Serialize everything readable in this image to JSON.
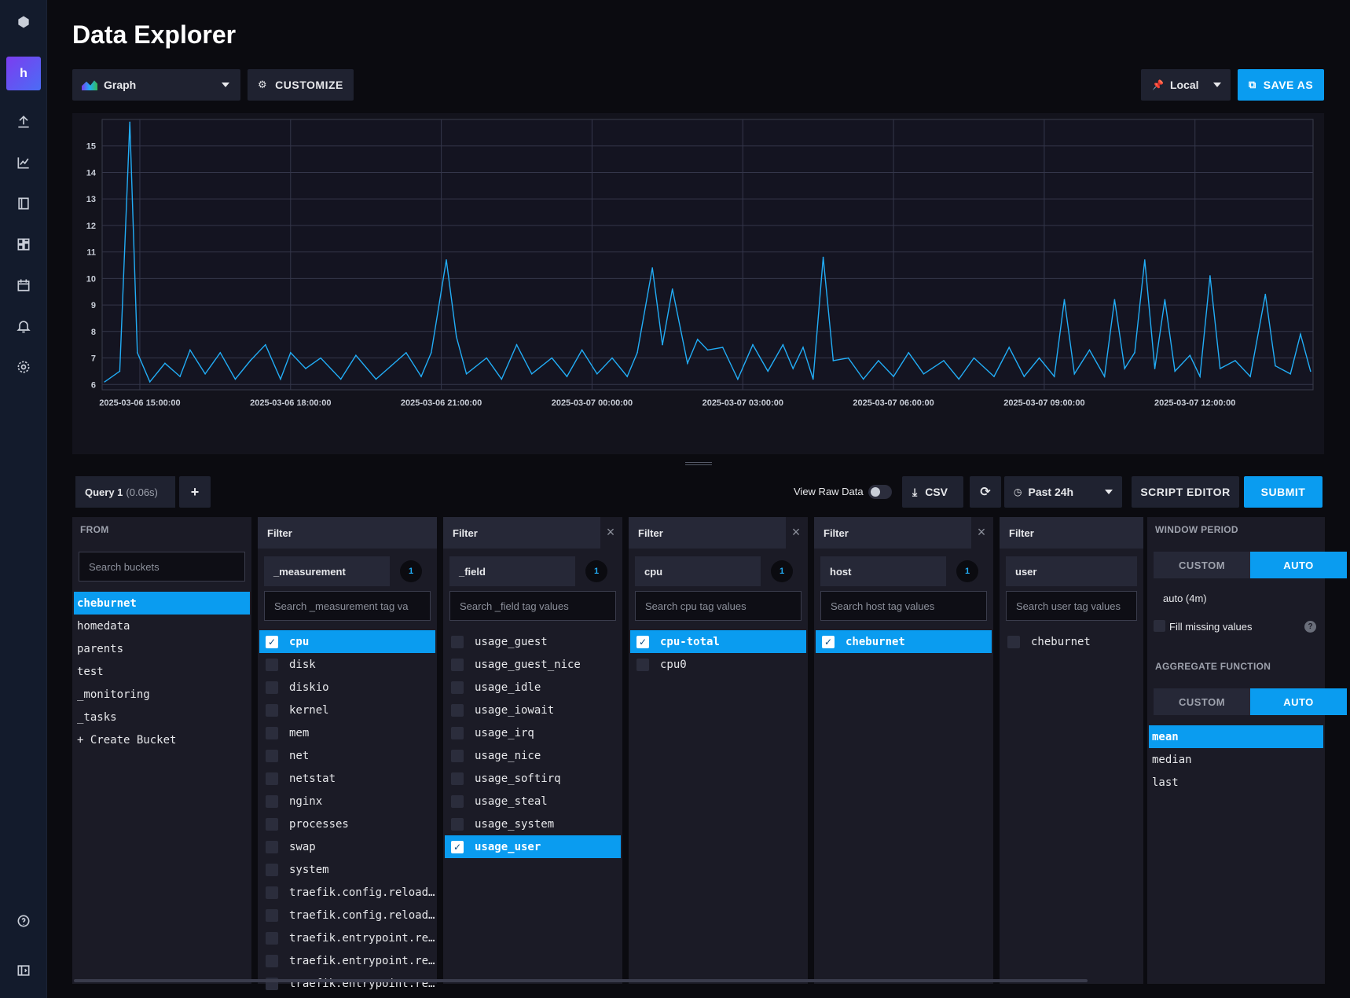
{
  "page": {
    "title": "Data Explorer"
  },
  "toolbar": {
    "viz_type": "Graph",
    "customize": "CUSTOMIZE",
    "timezone": "Local",
    "save_as": "SAVE AS"
  },
  "sidebar": {
    "org_initial": "h",
    "icons": [
      "logo-icon",
      "upload-icon",
      "explore-icon",
      "notebook-icon",
      "dashboard-icon",
      "tasks-icon",
      "alerts-icon",
      "settings-icon",
      "help-icon",
      "collapse-icon"
    ]
  },
  "query": {
    "tab_label": "Query 1",
    "timing": "(0.06s)",
    "add": "+",
    "view_raw": "View Raw Data",
    "csv": "CSV",
    "time_range": "Past 24h",
    "script_editor": "SCRIPT EDITOR",
    "submit": "SUBMIT"
  },
  "from": {
    "label": "FROM",
    "search_placeholder": "Search buckets",
    "buckets": [
      "cheburnet",
      "homedata",
      "parents",
      "test",
      "_monitoring",
      "_tasks",
      "+ Create Bucket"
    ],
    "selected": "cheburnet"
  },
  "filters": [
    {
      "header": "Filter",
      "key": "_measurement",
      "count": "1",
      "placeholder": "Search _measurement tag va",
      "items": [
        "cpu",
        "disk",
        "diskio",
        "kernel",
        "mem",
        "net",
        "netstat",
        "nginx",
        "processes",
        "swap",
        "system",
        "traefik.config.reload…",
        "traefik.config.reload…",
        "traefik.entrypoint.re…",
        "traefik.entrypoint.re…",
        "traefik.entrypoint.re…"
      ],
      "selected": [
        "cpu"
      ]
    },
    {
      "header": "Filter",
      "key": "_field",
      "count": "1",
      "placeholder": "Search _field tag values",
      "items": [
        "usage_guest",
        "usage_guest_nice",
        "usage_idle",
        "usage_iowait",
        "usage_irq",
        "usage_nice",
        "usage_softirq",
        "usage_steal",
        "usage_system",
        "usage_user"
      ],
      "selected": [
        "usage_user"
      ]
    },
    {
      "header": "Filter",
      "key": "cpu",
      "count": "1",
      "placeholder": "Search cpu tag values",
      "items": [
        "cpu-total",
        "cpu0"
      ],
      "selected": [
        "cpu-total"
      ]
    },
    {
      "header": "Filter",
      "key": "host",
      "count": "1",
      "placeholder": "Search host tag values",
      "items": [
        "cheburnet"
      ],
      "selected": [
        "cheburnet"
      ]
    },
    {
      "header": "Filter",
      "key": "user",
      "count": "",
      "placeholder": "Search user tag values",
      "items": [
        "cheburnet"
      ],
      "selected": []
    }
  ],
  "window": {
    "label": "WINDOW PERIOD",
    "custom": "CUSTOM",
    "auto": "AUTO",
    "auto_value": "auto (4m)",
    "fill_missing": "Fill missing values"
  },
  "aggregate": {
    "label": "AGGREGATE FUNCTION",
    "custom": "CUSTOM",
    "auto": "AUTO",
    "functions": [
      "mean",
      "median",
      "last"
    ],
    "selected": "mean"
  },
  "chart_data": {
    "type": "line",
    "title": "",
    "xlabel": "",
    "ylabel": "",
    "ylim": [
      6,
      16
    ],
    "yticks": [
      6,
      7,
      8,
      9,
      10,
      11,
      12,
      13,
      14,
      15
    ],
    "xticks": [
      "2025-03-06 15:00:00",
      "2025-03-06 18:00:00",
      "2025-03-06 21:00:00",
      "2025-03-07 00:00:00",
      "2025-03-07 03:00:00",
      "2025-03-07 06:00:00",
      "2025-03-07 09:00:00",
      "2025-03-07 12:00:00"
    ],
    "x_range_hours": [
      -0.75,
      23.35
    ],
    "series": [
      {
        "color": "#22adf6",
        "points": [
          [
            -0.7,
            6.1
          ],
          [
            -0.4,
            6.5
          ],
          [
            -0.2,
            15.9
          ],
          [
            -0.05,
            7.2
          ],
          [
            0.2,
            6.1
          ],
          [
            0.5,
            6.8
          ],
          [
            0.8,
            6.3
          ],
          [
            1.0,
            7.3
          ],
          [
            1.3,
            6.4
          ],
          [
            1.6,
            7.2
          ],
          [
            1.9,
            6.2
          ],
          [
            2.2,
            6.9
          ],
          [
            2.5,
            7.5
          ],
          [
            2.8,
            6.2
          ],
          [
            3.0,
            7.2
          ],
          [
            3.3,
            6.6
          ],
          [
            3.6,
            7.0
          ],
          [
            4.0,
            6.2
          ],
          [
            4.3,
            7.1
          ],
          [
            4.7,
            6.2
          ],
          [
            5.0,
            6.7
          ],
          [
            5.3,
            7.2
          ],
          [
            5.6,
            6.3
          ],
          [
            5.8,
            7.2
          ],
          [
            6.1,
            10.7
          ],
          [
            6.3,
            7.8
          ],
          [
            6.5,
            6.4
          ],
          [
            6.9,
            7.0
          ],
          [
            7.2,
            6.2
          ],
          [
            7.5,
            7.5
          ],
          [
            7.8,
            6.4
          ],
          [
            8.2,
            7.0
          ],
          [
            8.5,
            6.3
          ],
          [
            8.8,
            7.3
          ],
          [
            9.1,
            6.4
          ],
          [
            9.4,
            7.0
          ],
          [
            9.7,
            6.3
          ],
          [
            9.9,
            7.2
          ],
          [
            10.2,
            10.4
          ],
          [
            10.4,
            7.5
          ],
          [
            10.6,
            9.6
          ],
          [
            10.9,
            6.8
          ],
          [
            11.1,
            7.7
          ],
          [
            11.3,
            7.3
          ],
          [
            11.6,
            7.4
          ],
          [
            11.9,
            6.2
          ],
          [
            12.2,
            7.5
          ],
          [
            12.5,
            6.5
          ],
          [
            12.8,
            7.5
          ],
          [
            13.0,
            6.6
          ],
          [
            13.2,
            7.4
          ],
          [
            13.4,
            6.2
          ],
          [
            13.6,
            10.8
          ],
          [
            13.8,
            6.9
          ],
          [
            14.1,
            7.0
          ],
          [
            14.4,
            6.2
          ],
          [
            14.7,
            6.9
          ],
          [
            15.0,
            6.3
          ],
          [
            15.3,
            7.2
          ],
          [
            15.6,
            6.4
          ],
          [
            16.0,
            6.9
          ],
          [
            16.3,
            6.2
          ],
          [
            16.6,
            7.0
          ],
          [
            17.0,
            6.3
          ],
          [
            17.3,
            7.4
          ],
          [
            17.6,
            6.3
          ],
          [
            17.9,
            7.0
          ],
          [
            18.2,
            6.3
          ],
          [
            18.4,
            9.2
          ],
          [
            18.6,
            6.4
          ],
          [
            18.9,
            7.3
          ],
          [
            19.2,
            6.3
          ],
          [
            19.4,
            9.2
          ],
          [
            19.6,
            6.6
          ],
          [
            19.8,
            7.2
          ],
          [
            20.0,
            10.7
          ],
          [
            20.2,
            6.6
          ],
          [
            20.4,
            9.2
          ],
          [
            20.6,
            6.5
          ],
          [
            20.9,
            7.1
          ],
          [
            21.1,
            6.3
          ],
          [
            21.3,
            10.1
          ],
          [
            21.5,
            6.6
          ],
          [
            21.8,
            6.9
          ],
          [
            22.1,
            6.3
          ],
          [
            22.4,
            9.4
          ],
          [
            22.6,
            6.7
          ],
          [
            22.9,
            6.4
          ],
          [
            23.1,
            7.9
          ],
          [
            23.3,
            6.5
          ]
        ]
      }
    ]
  }
}
